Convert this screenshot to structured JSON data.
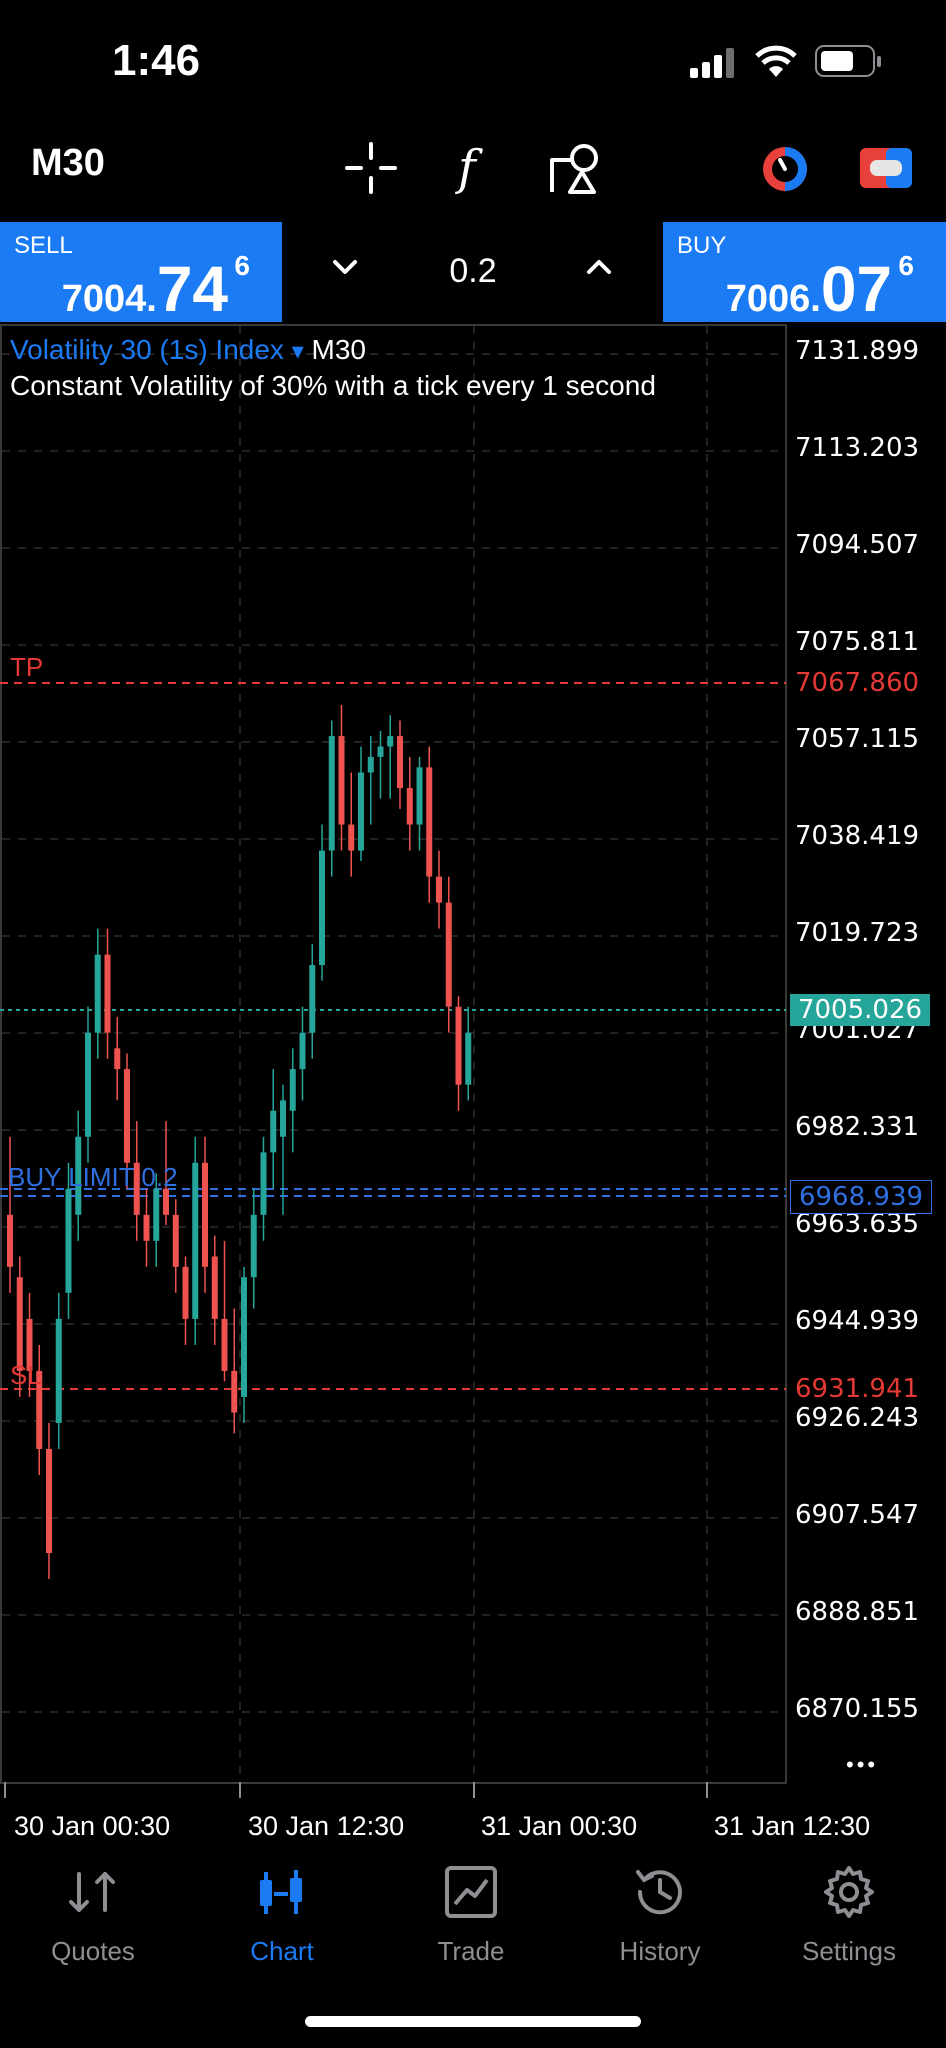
{
  "status_bar": {
    "time": "1:46"
  },
  "toolbar": {
    "timeframe": "M30",
    "icons": [
      "crosshair-icon",
      "function-icon",
      "objects-icon",
      "timer-icon",
      "toggle-icon"
    ]
  },
  "quote": {
    "sell": {
      "label": "SELL",
      "price_small": "7004.",
      "price_big": "74",
      "price_sup": "6"
    },
    "buy": {
      "label": "BUY",
      "price_small": "7006.",
      "price_big": "07",
      "price_sup": "6"
    },
    "lot": "0.2"
  },
  "chart": {
    "instrument": "Volatility 30 (1s) Index",
    "dropdown_arrow": "▾",
    "timeframe": "M30",
    "description": "Constant Volatility of 30% with a tick every 1 second",
    "price_axis": [
      "7131.899",
      "7113.203",
      "7094.507",
      "7075.811",
      "7057.115",
      "7038.419",
      "7019.723",
      "7001.027",
      "6982.331",
      "6963.635",
      "6944.939",
      "6926.243",
      "6907.547",
      "6888.851",
      "6870.155"
    ],
    "tp": {
      "label": "TP",
      "price": "7067.860"
    },
    "sl": {
      "label": "SL",
      "price": "6931.941"
    },
    "current_price": "7005.026",
    "buy_limit": {
      "label": "BUY LIMIT 0.2",
      "price": "6968.939"
    },
    "dates": [
      "30 Jan 00:30",
      "30 Jan 12:30",
      "31 Jan 00:30",
      "31 Jan 12:30"
    ],
    "more_icon": "•••",
    "colors": {
      "up": "#26a69a",
      "down": "#ef5350",
      "tp_sl": "#e53935",
      "buy_limit": "#2f6fe0"
    }
  },
  "chart_data": {
    "type": "candlestick",
    "ylim": [
      6861,
      7141
    ],
    "candles_ohlc": [
      [
        6970,
        6985,
        6955,
        6960
      ],
      [
        6958,
        6962,
        6935,
        6940
      ],
      [
        6950,
        6955,
        6935,
        6940
      ],
      [
        6940,
        6945,
        6920,
        6925
      ],
      [
        6925,
        6930,
        6900,
        6905
      ],
      [
        6930,
        6955,
        6925,
        6950
      ],
      [
        6955,
        6980,
        6950,
        6975
      ],
      [
        6970,
        6990,
        6965,
        6985
      ],
      [
        6985,
        7010,
        6980,
        7005
      ],
      [
        7005,
        7025,
        7000,
        7020
      ],
      [
        7020,
        7025,
        7000,
        7005
      ],
      [
        7002,
        7008,
        6992,
        6998
      ],
      [
        6998,
        7001,
        6975,
        6980
      ],
      [
        6980,
        6988,
        6965,
        6970
      ],
      [
        6970,
        6975,
        6960,
        6965
      ],
      [
        6965,
        6978,
        6960,
        6975
      ],
      [
        6975,
        6988,
        6968,
        6970
      ],
      [
        6970,
        6973,
        6955,
        6960
      ],
      [
        6960,
        6962,
        6945,
        6950
      ],
      [
        6950,
        6985,
        6945,
        6980
      ],
      [
        6980,
        6985,
        6955,
        6960
      ],
      [
        6962,
        6966,
        6945,
        6950
      ],
      [
        6950,
        6965,
        6938,
        6940
      ],
      [
        6940,
        6952,
        6928,
        6932
      ],
      [
        6935,
        6960,
        6930,
        6958
      ],
      [
        6958,
        6975,
        6952,
        6970
      ],
      [
        6970,
        6985,
        6965,
        6982
      ],
      [
        6982,
        6998,
        6975,
        6990
      ],
      [
        6985,
        6995,
        6970,
        6992
      ],
      [
        6990,
        7002,
        6982,
        6998
      ],
      [
        6998,
        7010,
        6992,
        7005
      ],
      [
        7005,
        7022,
        7000,
        7018
      ],
      [
        7018,
        7045,
        7015,
        7040
      ],
      [
        7040,
        7065,
        7035,
        7062
      ],
      [
        7062,
        7068,
        7040,
        7045
      ],
      [
        7045,
        7055,
        7035,
        7040
      ],
      [
        7040,
        7060,
        7038,
        7055
      ],
      [
        7055,
        7062,
        7045,
        7058
      ],
      [
        7058,
        7063,
        7050,
        7060
      ],
      [
        7060,
        7066,
        7050,
        7062
      ],
      [
        7062,
        7065,
        7048,
        7052
      ],
      [
        7052,
        7058,
        7040,
        7045
      ],
      [
        7045,
        7058,
        7040,
        7056
      ],
      [
        7056,
        7060,
        7030,
        7035
      ],
      [
        7035,
        7040,
        7025,
        7030
      ],
      [
        7030,
        7035,
        7005,
        7010
      ],
      [
        7010,
        7012,
        6990,
        6995
      ],
      [
        6995,
        7010,
        6992,
        7005
      ]
    ]
  }
}
